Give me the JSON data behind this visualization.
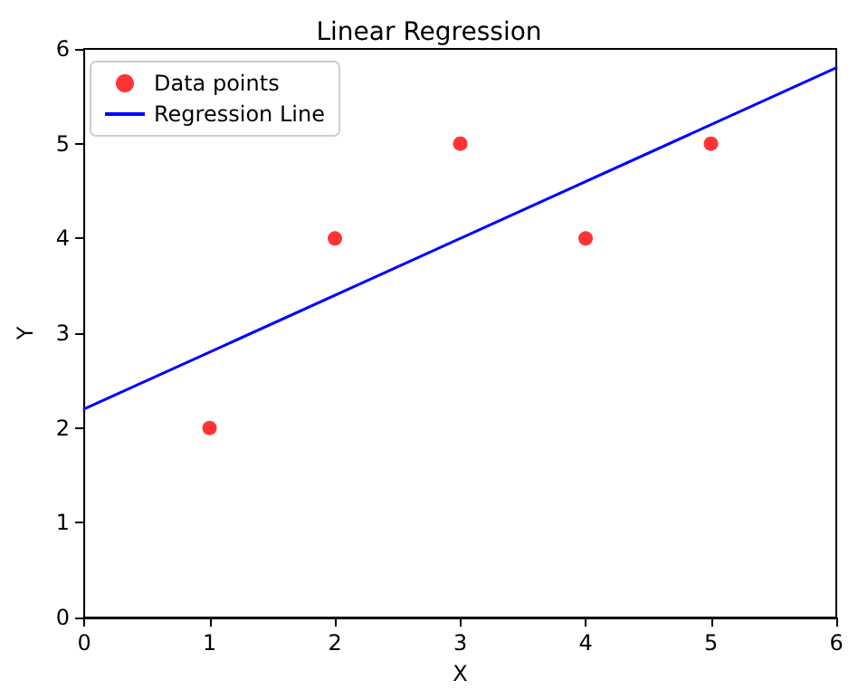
{
  "chart_data": {
    "type": "scatter",
    "title": "Linear Regression",
    "xlabel": "X",
    "ylabel": "Y",
    "xlim": [
      0,
      6
    ],
    "xticks": [
      0,
      1,
      2,
      3,
      4,
      5,
      6
    ],
    "ylim": [
      0,
      6
    ],
    "yticks": [
      0,
      1,
      2,
      3,
      4,
      5,
      6
    ],
    "grid": false,
    "legend": "top left",
    "series": [
      {
        "name": "Data points",
        "marker": "circle",
        "color": "#ff0000",
        "x": [
          1,
          2,
          3,
          4,
          5
        ],
        "values": [
          2,
          4,
          5,
          4,
          5
        ]
      },
      {
        "name": "Regression Line",
        "type": "line",
        "marker": "none",
        "line_style": "solid",
        "color": "#0000ff",
        "x": [
          0,
          6
        ],
        "values": [
          2.2,
          5.8
        ]
      }
    ]
  }
}
